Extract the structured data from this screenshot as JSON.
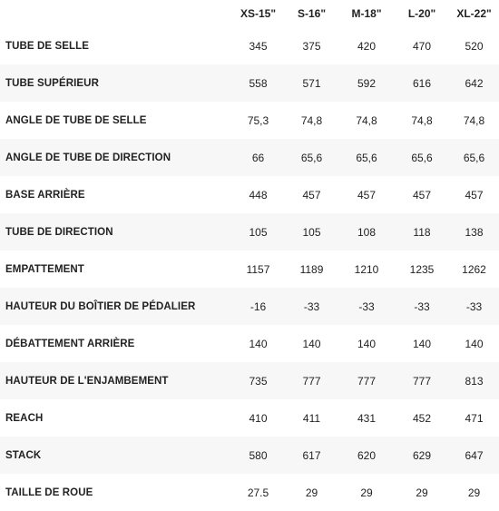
{
  "table": {
    "headers": [
      "",
      "XS-15\"",
      "S-16\"",
      "M-18\"",
      "L-20\"",
      "XL-22\""
    ],
    "rows": [
      {
        "label": "TUBE DE SELLE",
        "values": [
          "345",
          "375",
          "420",
          "470",
          "520"
        ]
      },
      {
        "label": "TUBE SUPÉRIEUR",
        "values": [
          "558",
          "571",
          "592",
          "616",
          "642"
        ]
      },
      {
        "label": "ANGLE DE TUBE DE SELLE",
        "values": [
          "75,3",
          "74,8",
          "74,8",
          "74,8",
          "74,8"
        ]
      },
      {
        "label": "ANGLE DE TUBE DE DIRECTION",
        "values": [
          "66",
          "65,6",
          "65,6",
          "65,6",
          "65,6"
        ]
      },
      {
        "label": "BASE ARRIÈRE",
        "values": [
          "448",
          "457",
          "457",
          "457",
          "457"
        ]
      },
      {
        "label": "TUBE DE DIRECTION",
        "values": [
          "105",
          "105",
          "108",
          "118",
          "138"
        ]
      },
      {
        "label": "EMPATTEMENT",
        "values": [
          "1157",
          "1189",
          "1210",
          "1235",
          "1262"
        ]
      },
      {
        "label": "HAUTEUR DU BOÎTIER DE PÉDALIER",
        "values": [
          "-16",
          "-33",
          "-33",
          "-33",
          "-33"
        ]
      },
      {
        "label": "DÉBATTEMENT ARRIÈRE",
        "values": [
          "140",
          "140",
          "140",
          "140",
          "140"
        ]
      },
      {
        "label": "HAUTEUR DE L'ENJAMBEMENT",
        "values": [
          "735",
          "777",
          "777",
          "777",
          "813"
        ]
      },
      {
        "label": "REACH",
        "values": [
          "410",
          "411",
          "431",
          "452",
          "471"
        ]
      },
      {
        "label": "STACK",
        "values": [
          "580",
          "617",
          "620",
          "629",
          "647"
        ]
      },
      {
        "label": "TAILLE DE ROUE",
        "values": [
          "27.5",
          "29",
          "29",
          "29",
          "29"
        ]
      }
    ]
  }
}
